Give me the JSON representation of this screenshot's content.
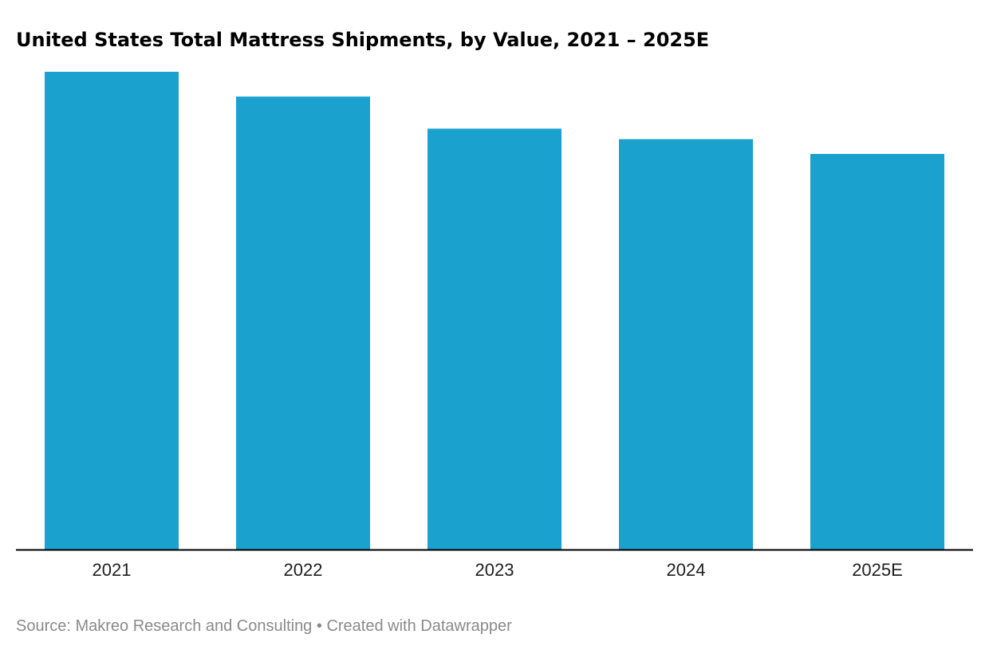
{
  "chart_data": {
    "type": "bar",
    "title": "United States Total Mattress Shipments, by Value, 2021 – 2025E",
    "categories": [
      "2021",
      "2022",
      "2023",
      "2024",
      "2025E"
    ],
    "values": [
      100,
      94.8,
      88.1,
      85.9,
      82.8
    ],
    "xlabel": "",
    "ylabel": "",
    "ylim": [
      0,
      100
    ],
    "grid": false,
    "legend": "none",
    "bar_color": "#1aa1cd",
    "axis_color": "#000000"
  },
  "footer": {
    "source": "Source: Makreo Research and Consulting",
    "separator": "•",
    "credit": "Created with Datawrapper"
  }
}
